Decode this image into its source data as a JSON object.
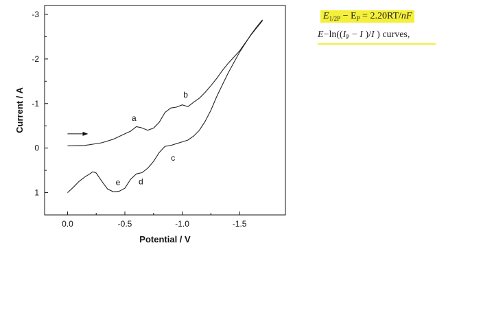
{
  "chart_data": {
    "type": "line",
    "title": "",
    "xlabel": "Potential / V",
    "ylabel": "Current / A",
    "xlim": [
      0.2,
      -1.9
    ],
    "ylim": [
      1.5,
      -3.2
    ],
    "y_inverted": true,
    "xticks": [
      0.0,
      -0.5,
      -1.0,
      -1.5
    ],
    "xtick_labels": [
      "0.0",
      "-0.5",
      "-1.0",
      "-1.5"
    ],
    "yticks": [
      -3,
      -2,
      -1,
      0,
      1
    ],
    "ytick_labels": [
      "-3",
      "-2",
      "-1",
      "0",
      "1"
    ],
    "grid": false,
    "legend": "none",
    "series": [
      {
        "stroke": "#222222",
        "x": [
          0.0,
          -0.15,
          -0.3,
          -0.4,
          -0.45,
          -0.5,
          -0.55,
          -0.6,
          -0.64,
          -0.7,
          -0.75,
          -0.8,
          -0.85,
          -0.9,
          -0.95,
          -1.0,
          -1.05,
          -1.1,
          -1.15,
          -1.2,
          -1.25,
          -1.3,
          -1.35,
          -1.4,
          -1.45,
          -1.5,
          -1.55,
          -1.6,
          -1.65,
          -1.7
        ],
        "y": [
          -0.05,
          -0.06,
          -0.12,
          -0.2,
          -0.26,
          -0.32,
          -0.38,
          -0.48,
          -0.46,
          -0.4,
          -0.45,
          -0.58,
          -0.8,
          -0.9,
          -0.92,
          -0.97,
          -0.93,
          -1.03,
          -1.12,
          -1.25,
          -1.4,
          -1.56,
          -1.74,
          -1.9,
          -2.04,
          -2.18,
          -2.36,
          -2.54,
          -2.7,
          -2.86
        ]
      },
      {
        "stroke": "#222222",
        "x": [
          0.0,
          -0.05,
          -0.1,
          -0.15,
          -0.2,
          -0.22,
          -0.25,
          -0.3,
          -0.35,
          -0.4,
          -0.45,
          -0.5,
          -0.55,
          -0.6,
          -0.65,
          -0.7,
          -0.75,
          -0.8,
          -0.85,
          -0.9,
          -0.95,
          -1.0,
          -1.05,
          -1.1,
          -1.15,
          -1.2,
          -1.25,
          -1.3,
          -1.35,
          -1.4,
          -1.45,
          -1.5,
          -1.55,
          -1.6,
          -1.65,
          -1.7
        ],
        "y": [
          1.0,
          0.88,
          0.75,
          0.65,
          0.57,
          0.53,
          0.56,
          0.75,
          0.92,
          0.98,
          0.97,
          0.9,
          0.7,
          0.58,
          0.55,
          0.45,
          0.3,
          0.1,
          -0.04,
          -0.06,
          -0.1,
          -0.14,
          -0.18,
          -0.27,
          -0.4,
          -0.6,
          -0.85,
          -1.15,
          -1.42,
          -1.68,
          -1.92,
          -2.15,
          -2.35,
          -2.55,
          -2.72,
          -2.88
        ]
      }
    ],
    "curve_labels": [
      {
        "text": "a",
        "x": -0.58,
        "y": -0.67
      },
      {
        "text": "b",
        "x": -1.03,
        "y": -1.2
      },
      {
        "text": "c",
        "x": -0.92,
        "y": 0.22
      },
      {
        "text": "d",
        "x": -0.64,
        "y": 0.75
      },
      {
        "text": "e",
        "x": -0.44,
        "y": 0.77
      }
    ],
    "arrow": {
      "from": [
        0.0,
        -0.32
      ],
      "to": [
        -0.18,
        -0.32
      ]
    }
  },
  "annotation": {
    "eq_E": "E",
    "eq_sub1": "1/2P",
    "eq_minus": " − E",
    "eq_sub2": "P",
    "eq_rest": " = 2.20RT/",
    "eq_nF": "nF",
    "line2_E": "E",
    "line2_mid1": "−ln((",
    "line2_I": "I",
    "line2_sub": "P",
    "line2_mid2": " − ",
    "line2_I2": "I",
    "line2_mid3": " )/",
    "line2_I3": "I",
    "line2_end": " ) curves,"
  }
}
